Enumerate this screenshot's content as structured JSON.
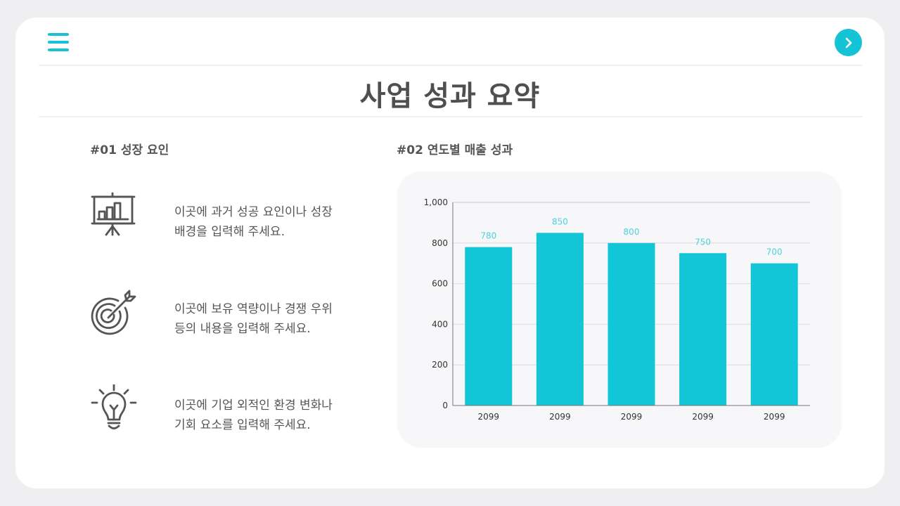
{
  "header": {
    "menu_icon": "hamburger-menu-icon",
    "next_icon": "chevron-right-icon",
    "title": "사업 성과 요약"
  },
  "colors": {
    "accent": "#14c3d6",
    "bar": "#12c6d8",
    "value_label": "#4fd0de",
    "text": "#555555",
    "title": "#4f4f4f",
    "chart_bg": "#f7f7f9",
    "page_bg": "#efeff1"
  },
  "left_section": {
    "label": "#01 성장 요인",
    "items": [
      {
        "icon": "presentation-chart-icon",
        "line1": "이곳에 과거 성공 요인이나 성장",
        "line2": "배경을 입력해 주세요."
      },
      {
        "icon": "target-arrow-icon",
        "line1": "이곳에 보유 역량이나 경쟁 우위",
        "line2": "등의 내용을 입력해 주세요."
      },
      {
        "icon": "lightbulb-icon",
        "line1": "이곳에 기업 외적인 환경 변화나",
        "line2": "기회 요소를 입력해 주세요."
      }
    ]
  },
  "right_section": {
    "label": "#02 연도별 매출 성과"
  },
  "chart_data": {
    "type": "bar",
    "title": "#02 연도별 매출 성과",
    "categories": [
      "2099",
      "2099",
      "2099",
      "2099",
      "2099"
    ],
    "values": [
      780,
      850,
      800,
      750,
      700
    ],
    "value_labels": [
      "780",
      "850",
      "800",
      "750",
      "700"
    ],
    "xlabel": "",
    "ylabel": "",
    "ylim": [
      0,
      1000
    ],
    "yticks": [
      0,
      200,
      400,
      600,
      800,
      1000
    ],
    "ytick_labels": [
      "0",
      "200",
      "400",
      "600",
      "800",
      "1,000"
    ],
    "grid": true,
    "legend": "none",
    "bar_color": "#12c6d8",
    "data_labels": true
  }
}
